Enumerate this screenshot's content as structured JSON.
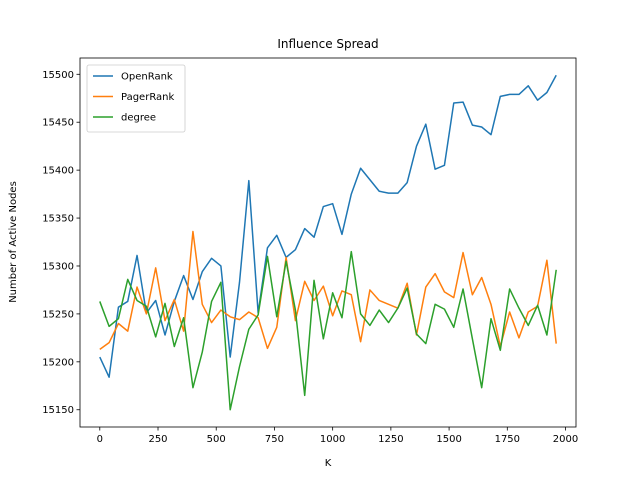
{
  "chart_data": {
    "type": "line",
    "title": "Influence Spread",
    "xlabel": "K",
    "ylabel": "Number of Active Nodes",
    "xlim": [
      -85,
      2045
    ],
    "ylim": [
      15132,
      15517
    ],
    "xticks": [
      0,
      250,
      500,
      750,
      1000,
      1250,
      1500,
      1750,
      2000
    ],
    "yticks": [
      15150,
      15200,
      15250,
      15300,
      15350,
      15400,
      15450,
      15500
    ],
    "grid": false,
    "legend_position": "top-left",
    "x": [
      0,
      40,
      80,
      120,
      160,
      200,
      240,
      280,
      320,
      360,
      400,
      440,
      480,
      520,
      560,
      600,
      640,
      680,
      720,
      760,
      800,
      840,
      880,
      920,
      960,
      1000,
      1040,
      1080,
      1120,
      1160,
      1200,
      1240,
      1280,
      1320,
      1360,
      1400,
      1440,
      1480,
      1520,
      1560,
      1600,
      1640,
      1680,
      1720,
      1760,
      1800,
      1840,
      1880,
      1920,
      1960
    ],
    "series": [
      {
        "name": "OpenRank",
        "color": "#1f77b4",
        "values": [
          15205,
          15184,
          15257,
          15263,
          15311,
          15251,
          15264,
          15228,
          15263,
          15290,
          15265,
          15294,
          15308,
          15300,
          15205,
          15283,
          15389,
          15251,
          15319,
          15332,
          15309,
          15317,
          15339,
          15330,
          15362,
          15365,
          15333,
          15375,
          15402,
          15390,
          15378,
          15376,
          15376,
          15387,
          15425,
          15448,
          15401,
          15405,
          15470,
          15471,
          15447,
          15445,
          15437,
          15477,
          15479,
          15479,
          15488,
          15473,
          15481,
          15499
        ]
      },
      {
        "name": "PagerRank",
        "color": "#ff7f0e",
        "values": [
          15213,
          15220,
          15240,
          15232,
          15278,
          15250,
          15298,
          15243,
          15265,
          15232,
          15336,
          15260,
          15241,
          15254,
          15247,
          15244,
          15252,
          15246,
          15214,
          15236,
          15309,
          15243,
          15284,
          15264,
          15279,
          15248,
          15274,
          15270,
          15221,
          15275,
          15264,
          15260,
          15256,
          15282,
          15228,
          15278,
          15292,
          15273,
          15267,
          15314,
          15270,
          15288,
          15260,
          15216,
          15252,
          15225,
          15252,
          15258,
          15306,
          15219
        ]
      },
      {
        "name": "degree",
        "color": "#2ca02c",
        "values": [
          15263,
          15237,
          15245,
          15286,
          15264,
          15258,
          15226,
          15261,
          15216,
          15246,
          15173,
          15210,
          15263,
          15283,
          15150,
          15195,
          15234,
          15249,
          15310,
          15247,
          15305,
          15254,
          15165,
          15285,
          15224,
          15272,
          15246,
          15315,
          15250,
          15238,
          15254,
          15241,
          15256,
          15277,
          15229,
          15219,
          15260,
          15255,
          15236,
          15276,
          15224,
          15173,
          15245,
          15212,
          15276,
          15256,
          15238,
          15259,
          15228,
          15296
        ]
      }
    ]
  }
}
